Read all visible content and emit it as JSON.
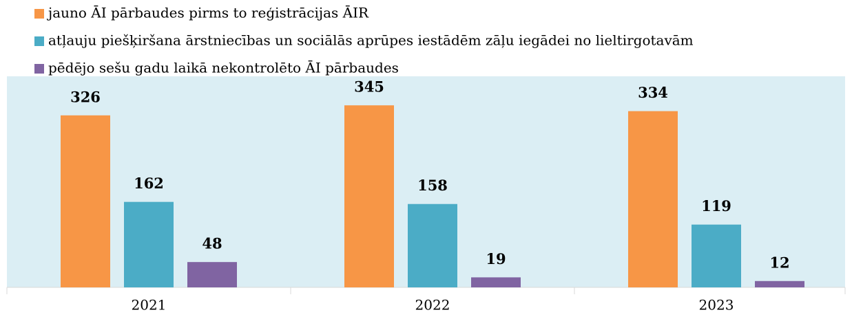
{
  "chart_data": {
    "type": "bar",
    "categories": [
      "2021",
      "2022",
      "2023"
    ],
    "series": [
      {
        "name": "jauno ĀI pārbaudes pirms to reģistrācijas ĀIR",
        "color": "#f79646",
        "values": [
          326,
          345,
          334
        ]
      },
      {
        "name": "atļauju piešķiršana ārstniecības un sociālās aprūpes iestādēm zāļu iegādei no lieltirgotavām",
        "color": "#4bacc6",
        "values": [
          162,
          158,
          119
        ]
      },
      {
        "name": "pēdējo sešu gadu laikā nekontrolēto ĀI pārbaudes",
        "color": "#8064a2",
        "values": [
          48,
          19,
          12
        ]
      }
    ],
    "ylim": [
      0,
      400
    ],
    "legend": "top-left",
    "background": "#dbeef4"
  }
}
